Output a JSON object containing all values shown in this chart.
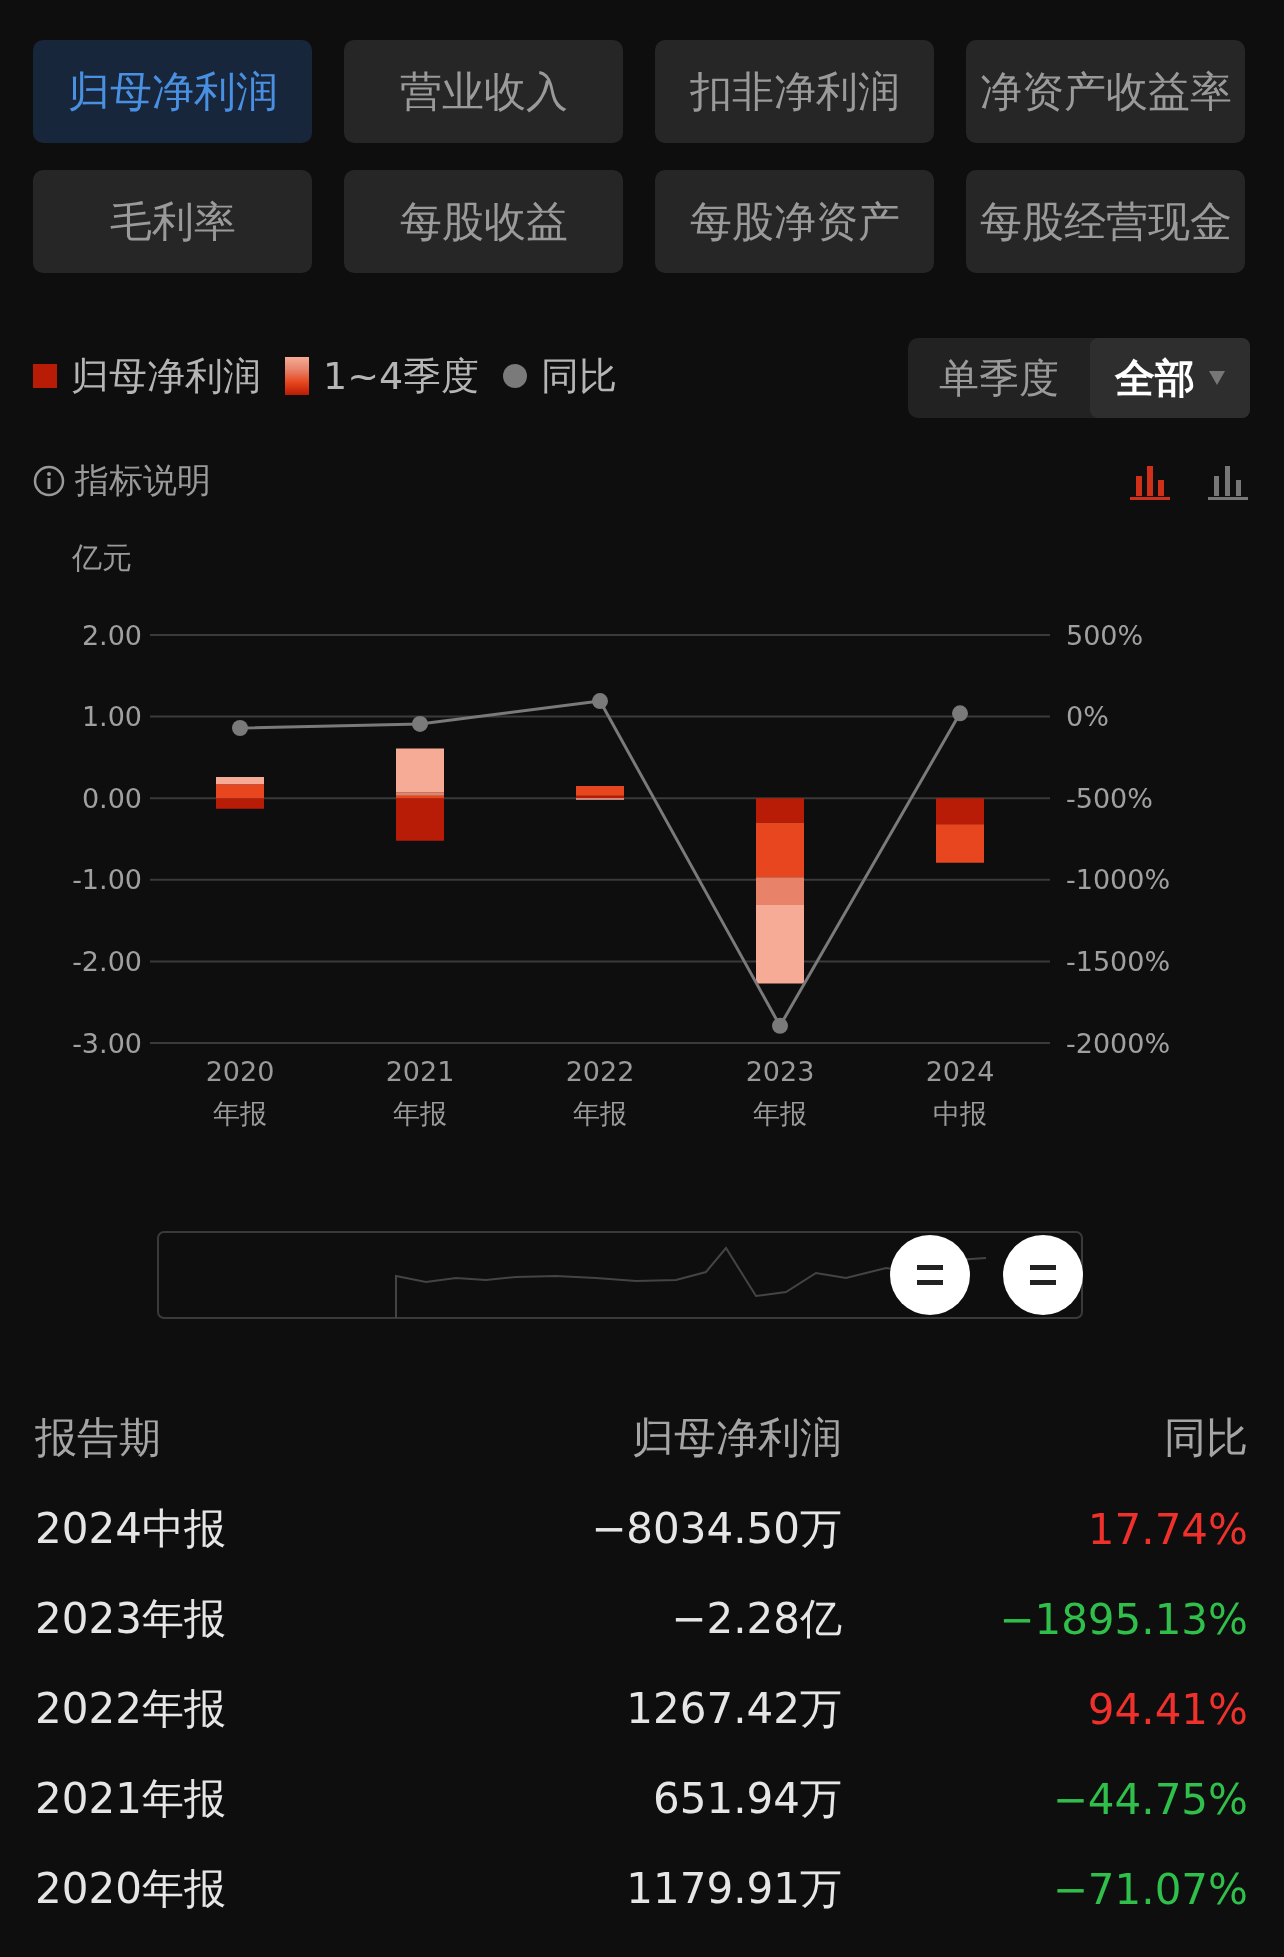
{
  "chart_data": {
    "type": "bar",
    "stacked": true,
    "ylabel": "亿元",
    "categories": [
      "2020年报",
      "2021年报",
      "2022年报",
      "2023年报",
      "2024中报"
    ],
    "series": [
      {
        "color": "#b81c06",
        "values": [
          -0.13,
          -0.52,
          0.03,
          -0.3,
          -0.32
        ]
      },
      {
        "color": "#e8461e",
        "values": [
          0.17,
          0.03,
          0.12,
          -0.67,
          -0.47
        ]
      },
      {
        "color": "#e8836a",
        "values": [
          null,
          0.04,
          null,
          -0.34,
          null
        ]
      },
      {
        "color": "#f5ab96",
        "values": [
          0.09,
          0.54,
          -0.02,
          -0.96,
          null
        ]
      },
      {
        "type": "line",
        "name": "同比",
        "axis": "y2",
        "color": "#7a7a7a",
        "values": [
          -70,
          -45,
          95,
          -1895,
          20
        ]
      }
    ],
    "ylim": [
      -3,
      2
    ],
    "yticks": [
      {
        "value": -3,
        "label": "-3.00"
      },
      {
        "value": -2,
        "label": "-2.00"
      },
      {
        "value": -1,
        "label": "-1.00"
      },
      {
        "value": 0,
        "label": "0.00"
      },
      {
        "value": 1,
        "label": "1.00"
      },
      {
        "value": 2,
        "label": "2.00"
      }
    ],
    "y2lim": [
      -2000,
      500
    ],
    "y2ticks": [
      {
        "value": -2000,
        "label": "-2000%"
      },
      {
        "value": -1500,
        "label": "-1500%"
      },
      {
        "value": -1000,
        "label": "-1000%"
      },
      {
        "value": -500,
        "label": "-500%"
      },
      {
        "value": 0,
        "label": "0%"
      },
      {
        "value": 500,
        "label": "500%"
      }
    ],
    "grid": "y",
    "legend": "top left",
    "marker": "circle",
    "annotations": [
      "归母净利润",
      "营业收入",
      "扣非净利润",
      "净资产收益率",
      "毛利率",
      "每股收益",
      "每股净资产",
      "每股经营现金",
      "归母净利润",
      "1~4季度",
      "单季度",
      "全部",
      "指标说明",
      "报告期",
      "归母净利润",
      "同比",
      "1179.91万",
      "651.94万",
      "1267.42万",
      "−2.28亿",
      "−8034.50万",
      "−71.07%",
      "−44.75%",
      "94.41%",
      "−1895.13%",
      "17.74%"
    ]
  }
}
